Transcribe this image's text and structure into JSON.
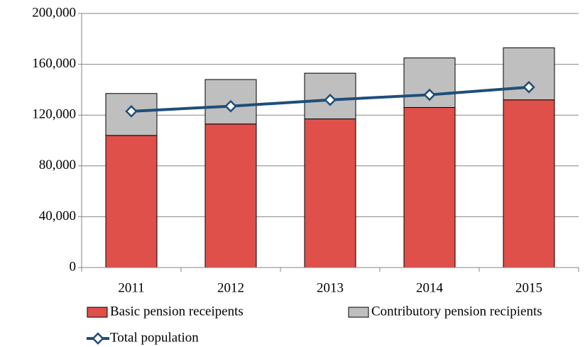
{
  "chart_data": {
    "type": "bar",
    "stacked": true,
    "categories": [
      "2011",
      "2012",
      "2013",
      "2014",
      "2015"
    ],
    "series": [
      {
        "name": "Basic pension receipents",
        "type": "bar",
        "color": "#e0504a",
        "values": [
          104000,
          113000,
          117000,
          126000,
          132000
        ]
      },
      {
        "name": "Contributory pension recipients",
        "type": "bar",
        "color": "#bfbfbf",
        "values": [
          33000,
          35000,
          36000,
          39000,
          41000
        ]
      },
      {
        "name": "Total population",
        "type": "line",
        "color": "#1f4e79",
        "values": [
          123000,
          127000,
          132000,
          136000,
          142000
        ]
      }
    ],
    "ylim": [
      0,
      200000
    ],
    "yticks": [
      0,
      {
        "value": 40000,
        "label": "40,000"
      },
      {
        "value": 80000,
        "label": "80,000"
      },
      {
        "value": 120000,
        "label": "120,000"
      },
      {
        "value": 160000,
        "label": "160,000"
      },
      {
        "value": 200000,
        "label": "200,000"
      }
    ],
    "grid": true,
    "legend": "bottom"
  }
}
